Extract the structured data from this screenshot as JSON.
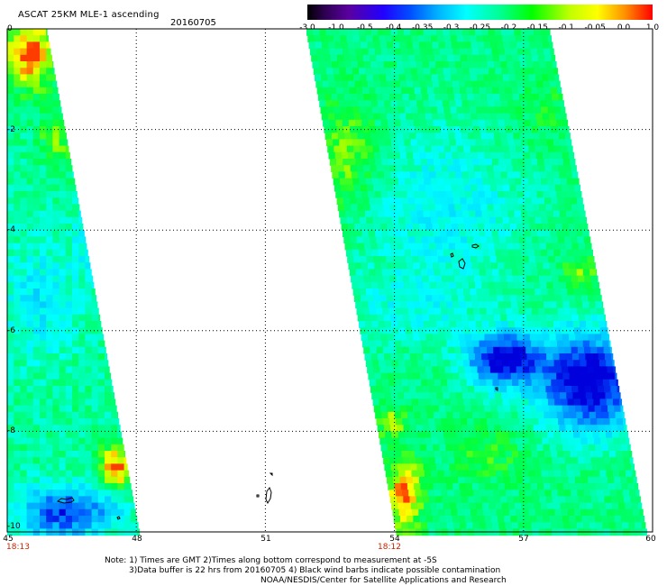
{
  "header": {
    "title": "ASCAT 25KM MLE-1 ascending",
    "date": "20160705"
  },
  "colorbar": {
    "labels": [
      "-3.0",
      "-1.0",
      "-0.5",
      "-0.4",
      "-0.35",
      "-0.3",
      "-0.25",
      "-0.2",
      "-0.15",
      "-0.1",
      "-0.05",
      "0.0",
      "1.0"
    ],
    "colors": [
      "#000000",
      "#5a00a0",
      "#2200ff",
      "#0050ff",
      "#00b4ff",
      "#00ffff",
      "#00ff90",
      "#00ff00",
      "#c0ff00",
      "#ffff00",
      "#ff9000",
      "#ff0000"
    ]
  },
  "axes": {
    "y_labels": [
      "0",
      "-2",
      "-4",
      "-6",
      "-8",
      "-10"
    ],
    "x_labels": [
      "45",
      "48",
      "51",
      "54",
      "57",
      "60"
    ],
    "y_range": [
      -10,
      0
    ],
    "x_range": [
      45,
      60
    ],
    "grid": "dotted"
  },
  "orbit_times": {
    "left": "18:13",
    "right": "18:12"
  },
  "notes": {
    "line1": "Note: 1) Times are GMT 2)Times along bottom correspond to measurement at -5S",
    "line2": "3)Data buffer is 22 hrs from 20160705 4) Black wind barbs indicate possible contamination",
    "line3": "NOAA/NESDIS/Center for Satellite Applications and Research"
  }
}
